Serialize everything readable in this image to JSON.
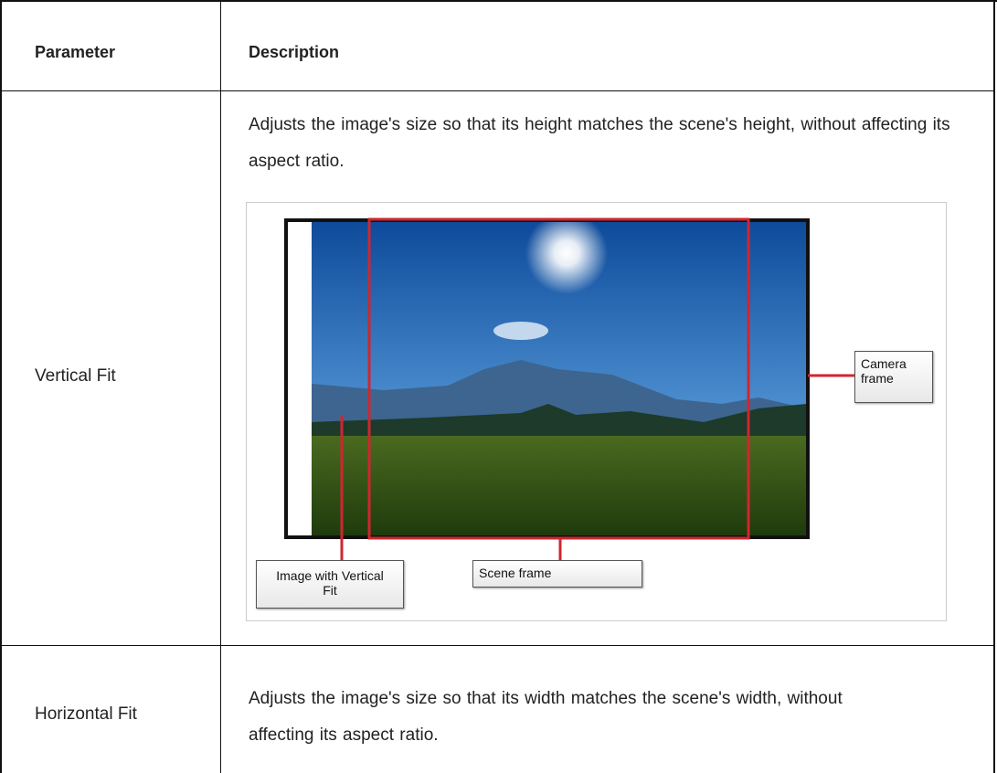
{
  "table": {
    "header": [
      "Parameter",
      "Description"
    ],
    "rows": [
      {
        "parameter": "Vertical Fit",
        "description": "Adjusts the image's size so that its height matches the scene's height, without affecting its aspect ratio.",
        "figure": {
          "labels": [
            "Camera frame",
            "Image with Vertical Fit",
            "Scene frame"
          ]
        }
      },
      {
        "parameter": "Horizontal Fit",
        "description": "Adjusts the image's size so that its width matches the scene's width, without affecting its aspect ratio."
      }
    ]
  }
}
